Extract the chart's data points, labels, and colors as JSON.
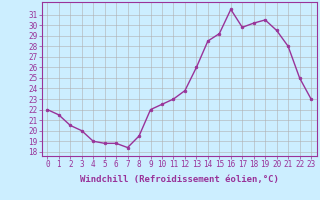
{
  "x": [
    0,
    1,
    2,
    3,
    4,
    5,
    6,
    7,
    8,
    9,
    10,
    11,
    12,
    13,
    14,
    15,
    16,
    17,
    18,
    19,
    20,
    21,
    22,
    23
  ],
  "y": [
    22,
    21.5,
    20.5,
    20,
    19,
    18.8,
    18.8,
    18.4,
    19.5,
    22,
    22.5,
    23,
    23.8,
    26,
    28.5,
    29.2,
    31.5,
    29.8,
    30.2,
    30.5,
    29.5,
    28,
    25,
    23
  ],
  "line_color": "#993399",
  "marker": "o",
  "marker_size": 2.0,
  "bg_color": "#cceeff",
  "grid_color": "#b0b0b0",
  "xlabel": "Windchill (Refroidissement éolien,°C)",
  "xlabel_fontsize": 6.5,
  "ylabel_ticks": [
    18,
    19,
    20,
    21,
    22,
    23,
    24,
    25,
    26,
    27,
    28,
    29,
    30,
    31
  ],
  "ylim": [
    17.6,
    32.2
  ],
  "xlim": [
    -0.5,
    23.5
  ],
  "xtick_labels": [
    "0",
    "1",
    "2",
    "3",
    "4",
    "5",
    "6",
    "7",
    "8",
    "9",
    "10",
    "11",
    "12",
    "13",
    "14",
    "15",
    "16",
    "17",
    "18",
    "19",
    "20",
    "21",
    "22",
    "23"
  ],
  "tick_fontsize": 5.5,
  "label_color": "#993399",
  "spine_color": "#993399"
}
